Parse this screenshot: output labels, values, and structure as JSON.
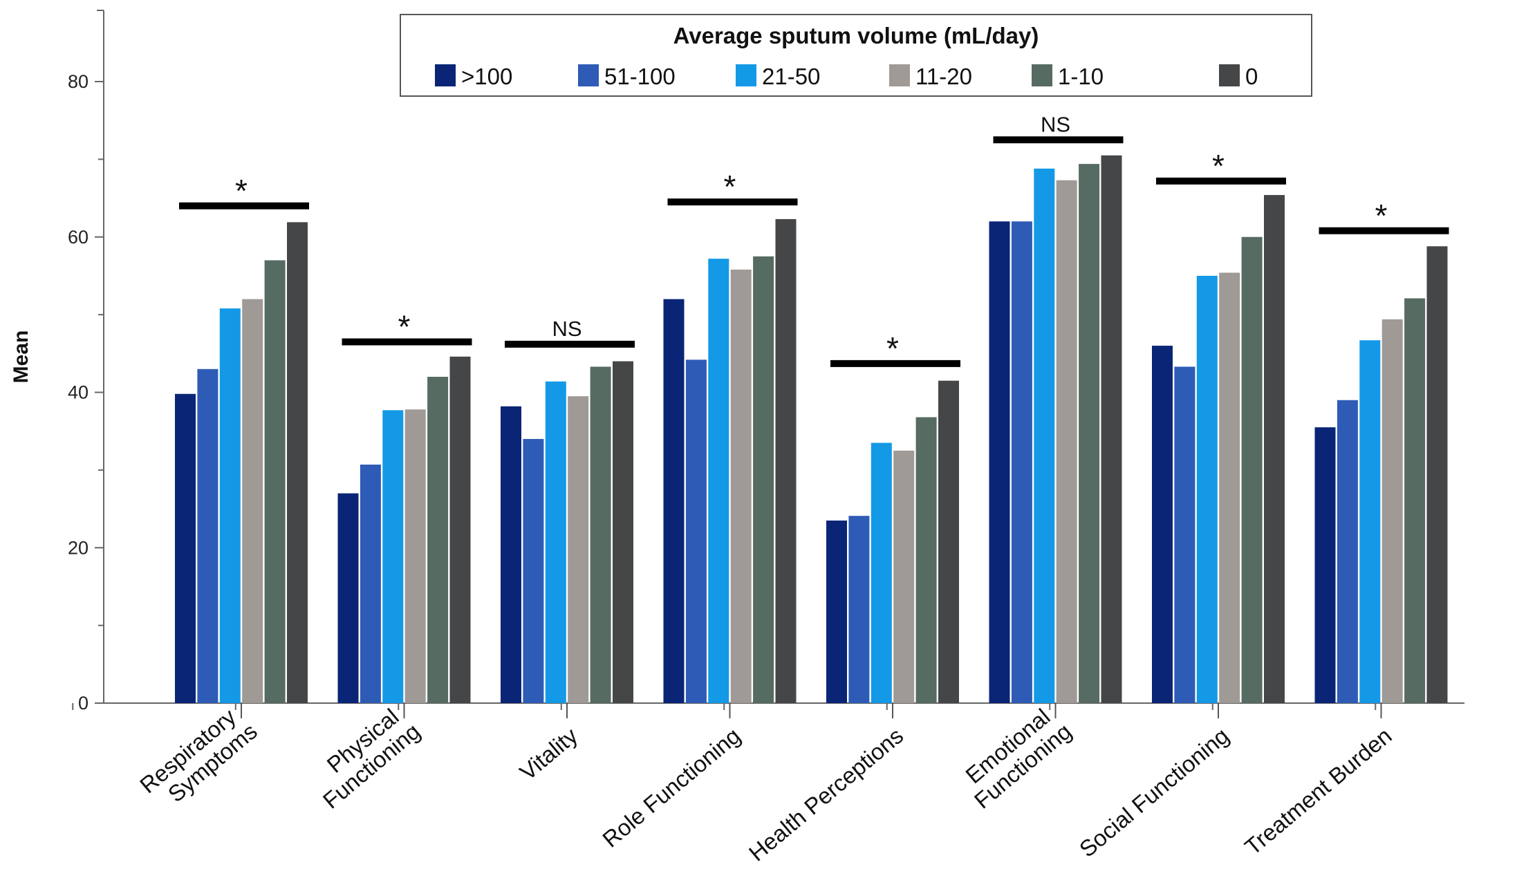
{
  "chart_data": {
    "type": "bar",
    "title": "",
    "xlabel": "",
    "ylabel": "Mean",
    "ylim": [
      0,
      88
    ],
    "yticks": [
      "0",
      "20",
      "40",
      "60",
      "80"
    ],
    "grid": false,
    "legend": {
      "title": "Average sputum volume (mL/day)",
      "placement": "top-center"
    },
    "categories": [
      [
        "Respiratory",
        "Symptoms"
      ],
      [
        "Physical",
        "Functioning"
      ],
      [
        "Vitality"
      ],
      [
        "Role Functioning"
      ],
      [
        "Health Perceptions"
      ],
      [
        "Emotional",
        "Functioning"
      ],
      [
        "Social Functioning"
      ],
      [
        "Treatment Burden"
      ]
    ],
    "series": [
      {
        "name": ">100",
        "color": "#0a2575",
        "values": [
          39.8,
          27.0,
          38.2,
          52.0,
          23.5,
          62.0,
          46.0,
          35.5
        ]
      },
      {
        "name": "51-100",
        "color": "#2e5bb5",
        "values": [
          43.0,
          30.7,
          34.0,
          44.2,
          24.1,
          62.0,
          43.3,
          39.0
        ]
      },
      {
        "name": "21-50",
        "color": "#1499e6",
        "values": [
          50.8,
          37.7,
          41.4,
          57.2,
          33.5,
          68.8,
          55.0,
          46.7
        ]
      },
      {
        "name": "11-20",
        "color": "#9f9a96",
        "values": [
          52.0,
          37.8,
          39.5,
          55.8,
          32.5,
          67.3,
          55.4,
          49.4
        ]
      },
      {
        "name": "1-10",
        "color": "#566b61",
        "values": [
          57.0,
          42.0,
          43.3,
          57.5,
          36.8,
          69.4,
          60.0,
          52.1
        ]
      },
      {
        "name": "0",
        "color": "#454647",
        "values": [
          61.9,
          44.6,
          44.0,
          62.3,
          41.5,
          70.5,
          65.4,
          58.8
        ]
      }
    ],
    "significance": {
      "labels": [
        "*",
        "*",
        "NS",
        "*",
        "*",
        "NS",
        "*",
        "*"
      ],
      "levels": [
        64,
        46.5,
        46.2,
        64.5,
        43.7,
        72.5,
        67.2,
        60.8
      ]
    }
  }
}
